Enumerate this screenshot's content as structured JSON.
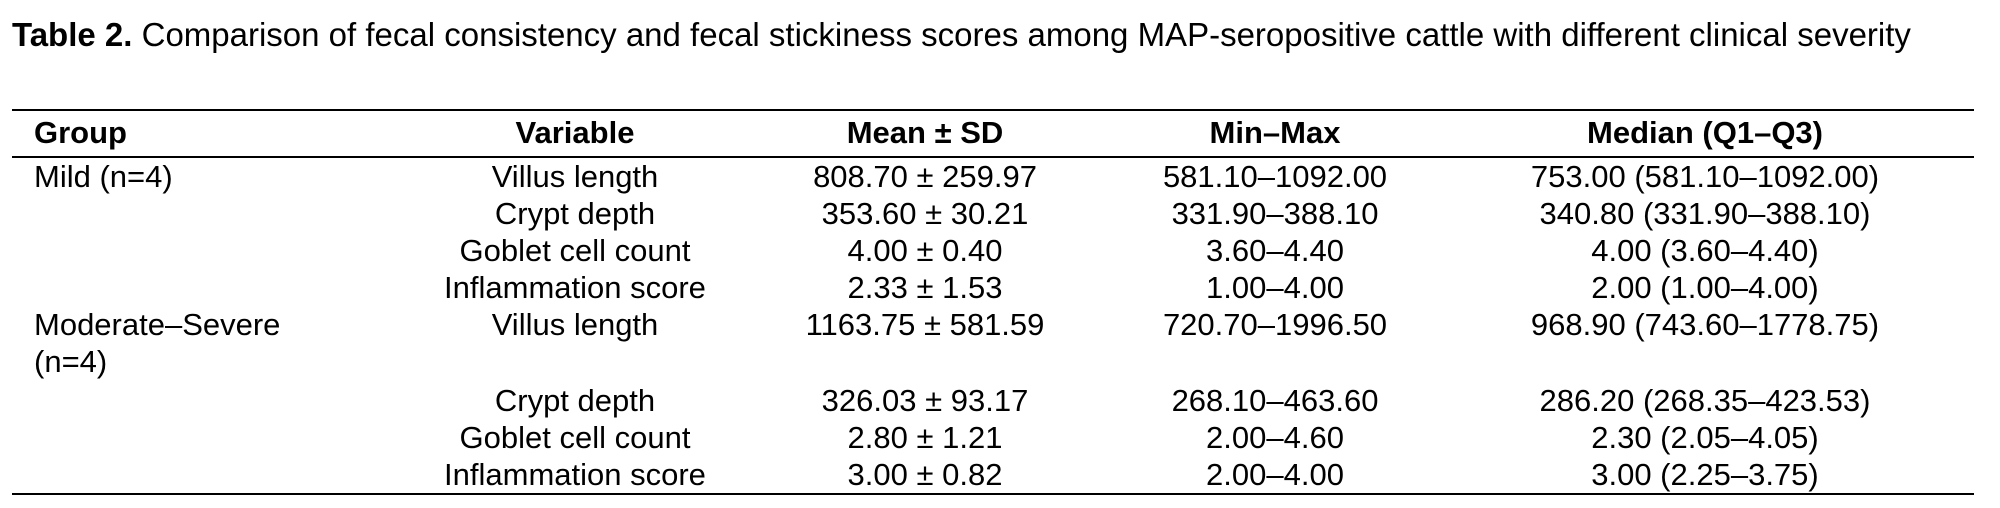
{
  "caption": {
    "label": "Table 2.",
    "text": " Comparison of fecal consistency and fecal stickiness scores among MAP-seropositive cattle with different clinical severity"
  },
  "table": {
    "headers": {
      "group": "Group",
      "variable": "Variable",
      "mean_sd": "Mean ± SD",
      "min_max": "Min–Max",
      "median": "Median (Q1–Q3)"
    },
    "rows": [
      {
        "group": "Mild (n=4)",
        "variable": "Villus length",
        "mean_sd": "808.70 ± 259.97",
        "min_max": "581.10–1092.00",
        "median": "753.00 (581.10–1092.00)"
      },
      {
        "group": "",
        "variable": "Crypt depth",
        "mean_sd": "353.60 ± 30.21",
        "min_max": "331.90–388.10",
        "median": "340.80 (331.90–388.10)"
      },
      {
        "group": "",
        "variable": "Goblet cell count",
        "mean_sd": "4.00 ± 0.40",
        "min_max": "3.60–4.40",
        "median": "4.00 (3.60–4.40)"
      },
      {
        "group": "",
        "variable": "Inflammation score",
        "mean_sd": "2.33 ± 1.53",
        "min_max": "1.00–4.00",
        "median": "2.00 (1.00–4.00)"
      },
      {
        "group": "Moderate–Severe (n=4)",
        "variable": "Villus length",
        "mean_sd": "1163.75 ± 581.59",
        "min_max": "720.70–1996.50",
        "median": "968.90 (743.60–1778.75)"
      },
      {
        "group": "",
        "variable": "Crypt depth",
        "mean_sd": "326.03 ± 93.17",
        "min_max": "268.10–463.60",
        "median": "286.20 (268.35–423.53)"
      },
      {
        "group": "",
        "variable": "Goblet cell count",
        "mean_sd": "2.80 ± 1.21",
        "min_max": "2.00–4.60",
        "median": "2.30 (2.05–4.05)"
      },
      {
        "group": "",
        "variable": "Inflammation score",
        "mean_sd": "3.00 ± 0.82",
        "min_max": "2.00–4.00",
        "median": "3.00 (2.25–3.75)"
      }
    ]
  }
}
